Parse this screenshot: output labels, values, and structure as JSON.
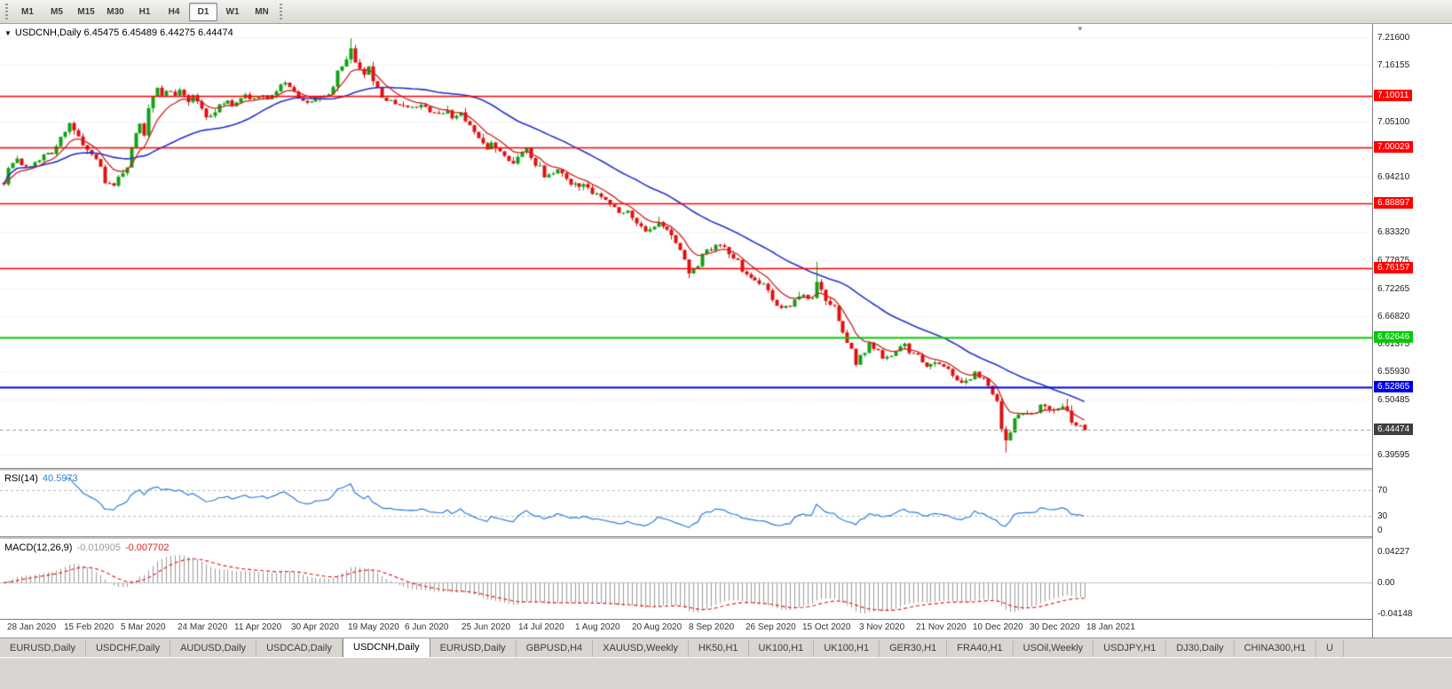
{
  "toolbar": {
    "timeframes": [
      {
        "label": "M1",
        "active": false
      },
      {
        "label": "M5",
        "active": false
      },
      {
        "label": "M15",
        "active": false
      },
      {
        "label": "M30",
        "active": false
      },
      {
        "label": "H1",
        "active": false
      },
      {
        "label": "H4",
        "active": false
      },
      {
        "label": "D1",
        "active": true
      },
      {
        "label": "W1",
        "active": false
      },
      {
        "label": "MN",
        "active": false
      }
    ]
  },
  "chart": {
    "title_overlay": "USDCNH,Daily 6.45475 6.45489 6.44275 6.44474",
    "symbol": "USDCNH",
    "period": "Daily",
    "ohlc": {
      "open": "6.45475",
      "high": "6.45489",
      "low": "6.44275",
      "close": "6.44474"
    },
    "price_axis_labels": [
      {
        "text": "7.21600",
        "value": 7.216
      },
      {
        "text": "7.16155",
        "value": 7.16155
      },
      {
        "text": "7.05100",
        "value": 7.051
      },
      {
        "text": "6.94210",
        "value": 6.9421
      },
      {
        "text": "6.83320",
        "value": 6.8332
      },
      {
        "text": "6.77875",
        "value": 6.77875
      },
      {
        "text": "6.72265",
        "value": 6.72265
      },
      {
        "text": "6.66820",
        "value": 6.6682
      },
      {
        "text": "6.61375",
        "value": 6.61375
      },
      {
        "text": "6.55930",
        "value": 6.5593
      },
      {
        "text": "6.50485",
        "value": 6.50485
      },
      {
        "text": "6.39595",
        "value": 6.39595
      }
    ],
    "hlines": [
      {
        "label": "7.10011",
        "value": 7.10011,
        "color": "#ff0000",
        "width": 1.6
      },
      {
        "label": "7.00029",
        "value": 7.00029,
        "color": "#ff0000",
        "width": 1.6
      },
      {
        "label": "6.88897",
        "value": 6.88897,
        "color": "#ff0000",
        "width": 1.6
      },
      {
        "label": "6.76157",
        "value": 6.76157,
        "color": "#ff0000",
        "width": 1.6
      },
      {
        "label": "6.62646",
        "value": 6.62646,
        "color": "#00cc00",
        "width": 2
      },
      {
        "label": "6.52865",
        "value": 6.52865,
        "color": "#0000e8",
        "width": 2
      }
    ],
    "current_price": {
      "label": "6.44474",
      "value": 6.44474,
      "badge_color": "#3f3f3f"
    },
    "colors": {
      "up": "#12a112",
      "down": "#e01010",
      "ma_fast": "#d02020",
      "ma_slow": "#2233cc",
      "grid": "#dcdcdc",
      "background": "#ffffff"
    }
  },
  "time_axis": {
    "labels": [
      "28 Jan 2020",
      "15 Feb 2020",
      "5 Mar 2020",
      "24 Mar 2020",
      "11 Apr 2020",
      "30 Apr 2020",
      "19 May 2020",
      "6 Jun 2020",
      "25 Jun 2020",
      "14 Jul 2020",
      "1 Aug 2020",
      "20 Aug 2020",
      "8 Sep 2020",
      "26 Sep 2020",
      "15 Oct 2020",
      "3 Nov 2020",
      "21 Nov 2020",
      "10 Dec 2020",
      "30 Dec 2020",
      "18 Jan 2021"
    ]
  },
  "rsi": {
    "title": "RSI(14)",
    "value": "40.5973",
    "line_color": "#2f7ed8",
    "levels": [
      {
        "text": "70",
        "value": 70
      },
      {
        "text": "30",
        "value": 30
      },
      {
        "text": "0",
        "value": 0
      }
    ]
  },
  "macd": {
    "title": "MACD(12,26,9)",
    "value_main": "-0.010905",
    "value_signal": "-0.007702",
    "histogram_color": "#9a9a9a",
    "signal_color": "#e02020",
    "axis_labels": [
      {
        "text": "0.04227",
        "value": 0.04227
      },
      {
        "text": "0.00",
        "value": 0
      },
      {
        "text": "-0.04148",
        "value": -0.04148
      }
    ]
  },
  "tabs": [
    {
      "label": "EURUSD,Daily",
      "active": false
    },
    {
      "label": "USDCHF,Daily",
      "active": false
    },
    {
      "label": "AUDUSD,Daily",
      "active": false
    },
    {
      "label": "USDCAD,Daily",
      "active": false
    },
    {
      "label": "USDCNH,Daily",
      "active": true
    },
    {
      "label": "EURUSD,Daily",
      "active": false
    },
    {
      "label": "GBPUSD,H4",
      "active": false
    },
    {
      "label": "XAUUSD,Weekly",
      "active": false
    },
    {
      "label": "HK50,H1",
      "active": false
    },
    {
      "label": "UK100,H1",
      "active": false
    },
    {
      "label": "UK100,H1",
      "active": false
    },
    {
      "label": "GER30,H1",
      "active": false
    },
    {
      "label": "FRA40,H1",
      "active": false
    },
    {
      "label": "USOil,Weekly",
      "active": false
    },
    {
      "label": "USDJPY,H1",
      "active": false
    },
    {
      "label": "DJ30,Daily",
      "active": false
    },
    {
      "label": "CHINA300,H1",
      "active": false
    },
    {
      "label": "U",
      "active": false
    }
  ],
  "chart_data": {
    "type": "candlestick",
    "symbol": "USDCNH",
    "timeframe": "Daily",
    "indicators": [
      "RSI(14)",
      "MACD(12,26,9)"
    ],
    "y_axis_range": [
      6.3698,
      7.2422
    ],
    "count": 247,
    "seed": 1337,
    "noise": 0.009,
    "wick": 0.011,
    "anchors": [
      [
        0,
        6.93
      ],
      [
        1,
        6.96
      ],
      [
        3,
        6.975
      ],
      [
        5,
        6.96
      ],
      [
        7,
        6.97
      ],
      [
        9,
        6.985
      ],
      [
        11,
        6.99
      ],
      [
        13,
        7.02
      ],
      [
        15,
        7.045
      ],
      [
        16,
        7.035
      ],
      [
        18,
        7.005
      ],
      [
        20,
        6.99
      ],
      [
        22,
        6.96
      ],
      [
        23,
        6.93
      ],
      [
        25,
        6.925
      ],
      [
        26,
        6.94
      ],
      [
        28,
        6.96
      ],
      [
        29,
        7.0
      ],
      [
        31,
        7.05
      ],
      [
        32,
        7.02
      ],
      [
        33,
        7.08
      ],
      [
        35,
        7.12
      ],
      [
        36,
        7.1
      ],
      [
        37,
        7.115
      ],
      [
        39,
        7.1
      ],
      [
        40,
        7.11
      ],
      [
        42,
        7.09
      ],
      [
        43,
        7.1
      ],
      [
        45,
        7.08
      ],
      [
        46,
        7.06
      ],
      [
        48,
        7.065
      ],
      [
        49,
        7.08
      ],
      [
        51,
        7.09
      ],
      [
        52,
        7.085
      ],
      [
        54,
        7.095
      ],
      [
        55,
        7.1
      ],
      [
        57,
        7.095
      ],
      [
        58,
        7.1
      ],
      [
        60,
        7.095
      ],
      [
        61,
        7.1
      ],
      [
        63,
        7.12
      ],
      [
        64,
        7.13
      ],
      [
        66,
        7.11
      ],
      [
        67,
        7.095
      ],
      [
        69,
        7.085
      ],
      [
        70,
        7.09
      ],
      [
        72,
        7.1
      ],
      [
        74,
        7.105
      ],
      [
        75,
        7.12
      ],
      [
        76,
        7.15
      ],
      [
        78,
        7.17
      ],
      [
        79,
        7.195
      ],
      [
        80,
        7.17
      ],
      [
        82,
        7.14
      ],
      [
        83,
        7.155
      ],
      [
        84,
        7.13
      ],
      [
        86,
        7.1
      ],
      [
        87,
        7.09
      ],
      [
        88,
        7.095
      ],
      [
        90,
        7.08
      ],
      [
        92,
        7.075
      ],
      [
        93,
        7.08
      ],
      [
        95,
        7.085
      ],
      [
        96,
        7.075
      ],
      [
        98,
        7.07
      ],
      [
        99,
        7.065
      ],
      [
        101,
        7.07
      ],
      [
        102,
        7.06
      ],
      [
        104,
        7.065
      ],
      [
        105,
        7.05
      ],
      [
        107,
        7.03
      ],
      [
        108,
        7.015
      ],
      [
        110,
        7.0
      ],
      [
        111,
        7.005
      ],
      [
        113,
        6.995
      ],
      [
        114,
        6.985
      ],
      [
        116,
        6.97
      ],
      [
        117,
        6.985
      ],
      [
        119,
        6.995
      ],
      [
        120,
        6.975
      ],
      [
        122,
        6.96
      ],
      [
        123,
        6.945
      ],
      [
        125,
        6.95
      ],
      [
        126,
        6.955
      ],
      [
        128,
        6.94
      ],
      [
        129,
        6.93
      ],
      [
        131,
        6.92
      ],
      [
        132,
        6.925
      ],
      [
        134,
        6.91
      ],
      [
        136,
        6.9
      ],
      [
        137,
        6.895
      ],
      [
        139,
        6.88
      ],
      [
        140,
        6.87
      ],
      [
        142,
        6.875
      ],
      [
        143,
        6.86
      ],
      [
        145,
        6.845
      ],
      [
        146,
        6.83
      ],
      [
        148,
        6.84
      ],
      [
        149,
        6.85
      ],
      [
        151,
        6.84
      ],
      [
        152,
        6.825
      ],
      [
        154,
        6.8
      ],
      [
        155,
        6.775
      ],
      [
        156,
        6.755
      ],
      [
        158,
        6.77
      ],
      [
        159,
        6.79
      ],
      [
        161,
        6.8
      ],
      [
        162,
        6.81
      ],
      [
        164,
        6.8
      ],
      [
        165,
        6.79
      ],
      [
        167,
        6.775
      ],
      [
        168,
        6.755
      ],
      [
        170,
        6.745
      ],
      [
        171,
        6.74
      ],
      [
        173,
        6.73
      ],
      [
        175,
        6.7
      ],
      [
        176,
        6.685
      ],
      [
        177,
        6.68
      ],
      [
        179,
        6.69
      ],
      [
        180,
        6.7
      ],
      [
        181,
        6.71
      ],
      [
        183,
        6.705
      ],
      [
        184,
        6.7
      ],
      [
        185,
        6.735
      ],
      [
        187,
        6.7
      ],
      [
        189,
        6.685
      ],
      [
        190,
        6.655
      ],
      [
        192,
        6.62
      ],
      [
        193,
        6.6
      ],
      [
        194,
        6.575
      ],
      [
        196,
        6.6
      ],
      [
        197,
        6.615
      ],
      [
        199,
        6.6
      ],
      [
        200,
        6.585
      ],
      [
        202,
        6.59
      ],
      [
        203,
        6.6
      ],
      [
        205,
        6.61
      ],
      [
        206,
        6.6
      ],
      [
        208,
        6.59
      ],
      [
        209,
        6.575
      ],
      [
        211,
        6.57
      ],
      [
        212,
        6.575
      ],
      [
        214,
        6.57
      ],
      [
        215,
        6.56
      ],
      [
        217,
        6.545
      ],
      [
        218,
        6.535
      ],
      [
        220,
        6.545
      ],
      [
        221,
        6.555
      ],
      [
        223,
        6.545
      ],
      [
        224,
        6.53
      ],
      [
        226,
        6.5
      ],
      [
        227,
        6.445
      ],
      [
        228,
        6.42
      ],
      [
        229,
        6.435
      ],
      [
        230,
        6.465
      ],
      [
        232,
        6.48
      ],
      [
        233,
        6.475
      ],
      [
        235,
        6.48
      ],
      [
        236,
        6.49
      ],
      [
        238,
        6.485
      ],
      [
        239,
        6.48
      ],
      [
        241,
        6.49
      ],
      [
        242,
        6.485
      ],
      [
        243,
        6.46
      ],
      [
        244,
        6.455
      ],
      [
        245,
        6.455
      ],
      [
        246,
        6.4447
      ]
    ],
    "specials": [
      {
        "i": 79,
        "h": 7.214
      },
      {
        "i": 185,
        "h": 6.775
      },
      {
        "i": 228,
        "l": 6.4
      },
      {
        "i": 242,
        "h": 6.506
      },
      {
        "i": 246,
        "o": 6.45475,
        "h": 6.45489,
        "l": 6.44275,
        "c": 6.44474
      }
    ]
  }
}
